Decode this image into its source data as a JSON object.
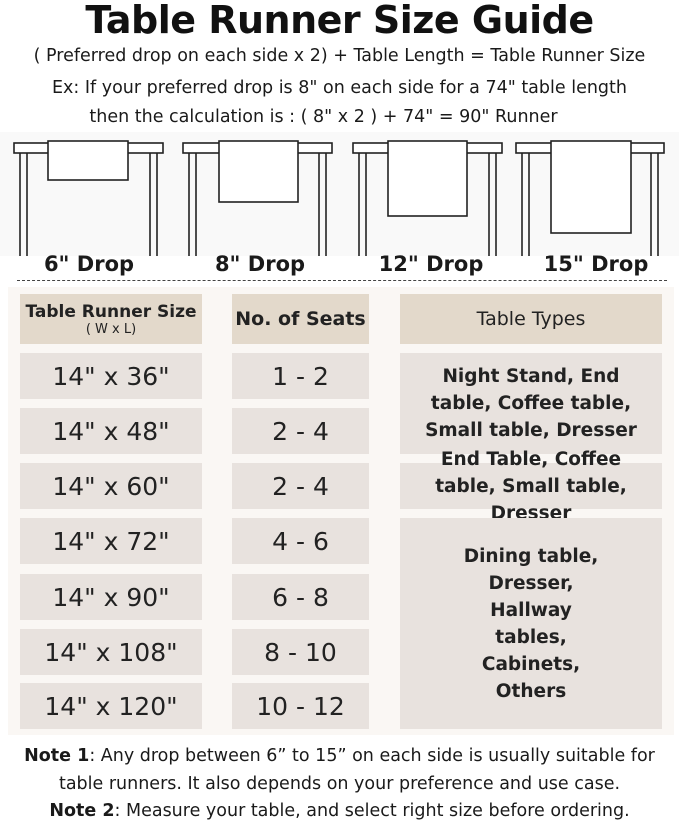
{
  "title": "Table Runner Size Guide",
  "formula": "( Preferred drop on each side x 2) + Table Length = Table Runner Size",
  "example_line1": "Ex: If your preferred drop is 8\" on each side for a 74\" table length",
  "example_line2": "then the calculation is : ( 8\" x 2 ) + 74\" = 90\" Runner",
  "drops": [
    "6\" Drop",
    "8\" Drop",
    "12\" Drop",
    "15\" Drop"
  ],
  "table": {
    "headers": {
      "size": "Table Runner Size",
      "size_sub": "( W x L)",
      "seats": "No. of Seats",
      "types": "Table Types"
    },
    "rows": [
      {
        "size": "14\" x 36\"",
        "seats": "1 - 2"
      },
      {
        "size": "14\" x 48\"",
        "seats": "2 - 4"
      },
      {
        "size": "14\" x 60\"",
        "seats": "2 - 4"
      },
      {
        "size": "14\" x 72\"",
        "seats": "4 - 6"
      },
      {
        "size": "14\" x 90\"",
        "seats": "6 - 8"
      },
      {
        "size": "14\" x 108\"",
        "seats": "8 - 10"
      },
      {
        "size": "14\" x 120\"",
        "seats": "10 - 12"
      }
    ],
    "types": [
      "Night Stand, End table, Coffee table, Small table, Dresser",
      "End Table, Coffee table, Small table, Dresser",
      "Dining table, Dresser, Hallway tables, Cabinets, Others"
    ]
  },
  "notes": {
    "note1_label": "Note 1",
    "note1_text": ": Any drop between 6” to 15” on each side is usually suitable for",
    "note1_text2": "table runners. It also depends on your preference and use case.",
    "note2_label": "Note 2",
    "note2_text": ": Measure your table, and select right size before ordering."
  },
  "colors": {
    "header_cell": "#e3d9cb",
    "body_cell": "#e8e2de",
    "panel": "#faf7f4"
  }
}
